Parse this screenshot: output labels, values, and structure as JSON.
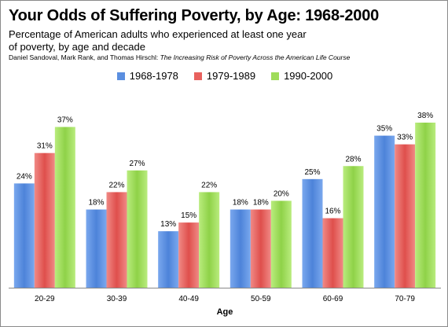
{
  "chart_data": {
    "type": "bar",
    "title": "Your Odds of Suffering Poverty, by Age: 1968-2000",
    "subtitle": "Percentage of American adults who experienced at least one year of poverty, by age and decade",
    "source_authors": "Daniel Sandoval, Mark Rank, and Thomas Hirschl: ",
    "source_title": "The Increasing Risk of Poverty Across the American Life Course",
    "xlabel": "Age",
    "ylabel": "",
    "ylim": [
      0,
      40
    ],
    "grid": false,
    "legend_position": "top",
    "categories": [
      "20-29",
      "30-39",
      "40-49",
      "50-59",
      "60-69",
      "70-79"
    ],
    "series": [
      {
        "name": "1968-1978",
        "color": "#5b8fe0",
        "values": [
          24,
          18,
          13,
          18,
          25,
          35
        ]
      },
      {
        "name": "1979-1989",
        "color": "#e8615e",
        "values": [
          31,
          22,
          15,
          18,
          16,
          33
        ]
      },
      {
        "name": "1990-2000",
        "color": "#9fdc5a",
        "values": [
          37,
          27,
          22,
          20,
          28,
          38
        ]
      }
    ],
    "value_suffix": "%"
  }
}
